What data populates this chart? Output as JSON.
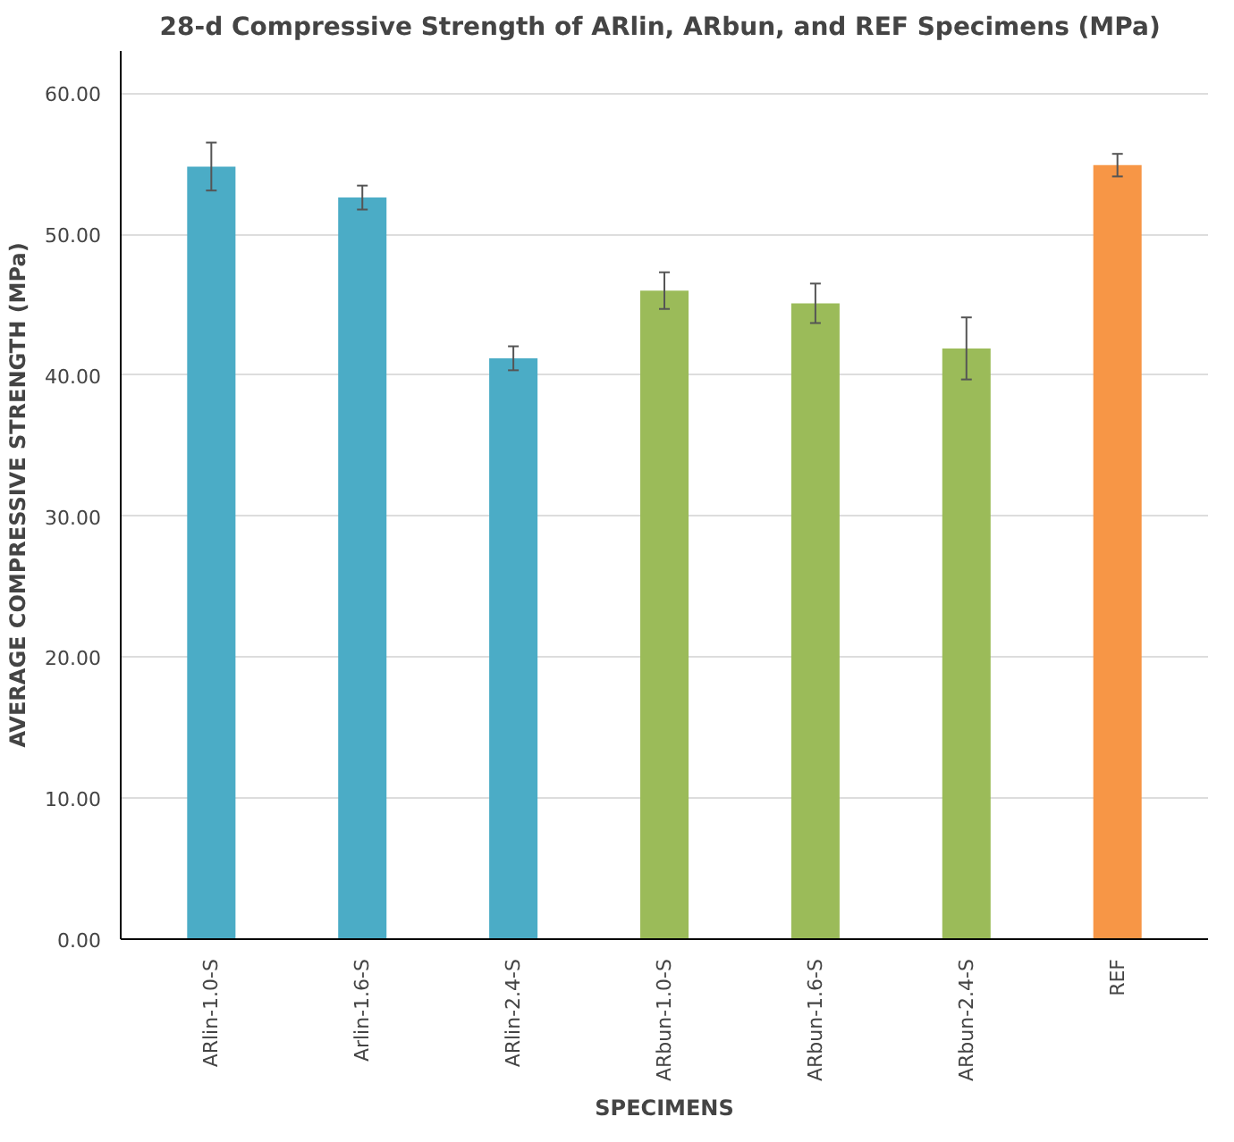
{
  "chart_data": {
    "type": "bar",
    "title": "28-d Compressive Strength of ARlin, ARbun, and REF Specimens  (MPa)",
    "xlabel": "SPECIMENS",
    "ylabel": "AVERAGE COMPRESSIVE STRENGTH (MPa)",
    "categories": [
      "ARlin-1.0-S",
      "Arlin-1.6-S",
      "ARlin-2.4-S",
      "ARbun-1.0-S",
      "ARbun-1.6-S",
      "ARbun-2.4-S",
      "REF"
    ],
    "values": [
      54.8,
      52.6,
      41.2,
      46.0,
      45.1,
      41.9,
      54.9
    ],
    "errors": [
      1.7,
      0.85,
      0.85,
      1.3,
      1.4,
      2.2,
      0.8
    ],
    "colors": [
      "#4bacc6",
      "#4bacc6",
      "#4bacc6",
      "#9bbb59",
      "#9bbb59",
      "#9bbb59",
      "#f79646"
    ],
    "ylim": [
      0,
      63
    ],
    "yticks": [
      {
        "value": 0,
        "label": "0.00"
      },
      {
        "value": 10,
        "label": "10.00"
      },
      {
        "value": 20,
        "label": "20.00"
      },
      {
        "value": 30,
        "label": "30.00"
      },
      {
        "value": 40,
        "label": "40.00"
      },
      {
        "value": 50,
        "label": "50.00"
      },
      {
        "value": 60,
        "label": "60.00"
      }
    ],
    "grid": "y"
  }
}
